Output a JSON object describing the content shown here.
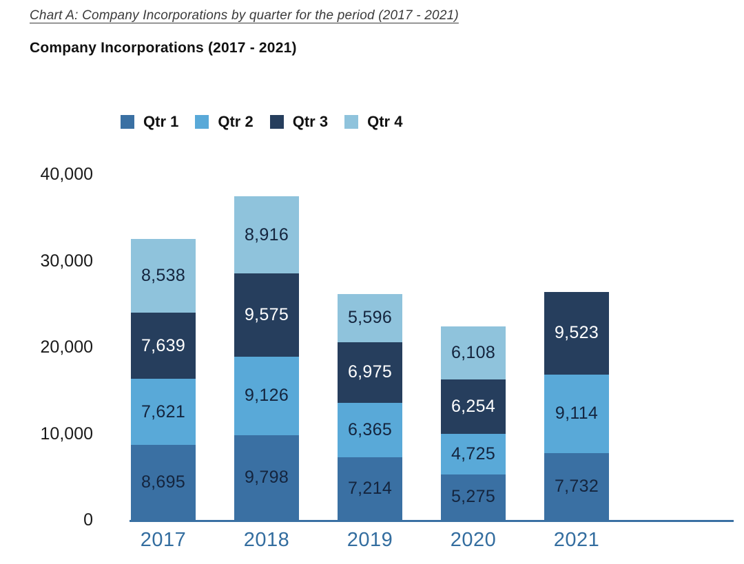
{
  "header": {
    "caption": "Chart A: Company Incorporations by quarter for the period (2017 - 2021)",
    "title": "Company Incorporations (2017 - 2021)"
  },
  "chart_data": {
    "type": "bar",
    "stacked": true,
    "title": "Company Incorporations (2017 - 2021)",
    "categories": [
      "2017",
      "2018",
      "2019",
      "2020",
      "2021"
    ],
    "series": [
      {
        "name": "Qtr 1",
        "color": "#3a70a3",
        "label_color": "#14243d",
        "values": [
          8695,
          9798,
          7214,
          5275,
          7732
        ]
      },
      {
        "name": "Qtr 2",
        "color": "#59a9d8",
        "label_color": "#14243d",
        "values": [
          7621,
          9126,
          6365,
          4725,
          9114
        ]
      },
      {
        "name": "Qtr 3",
        "color": "#263e5d",
        "label_color": "#ffffff",
        "values": [
          7639,
          9575,
          6975,
          6254,
          9523
        ]
      },
      {
        "name": "Qtr 4",
        "color": "#8fc3dc",
        "label_color": "#14243d",
        "values": [
          8538,
          8916,
          5596,
          6108,
          null
        ]
      }
    ],
    "totals": [
      32493,
      37415,
      26150,
      22362,
      26369
    ],
    "xlabel": "",
    "ylabel": "",
    "ylim": [
      0,
      40000
    ],
    "yticks": [
      0,
      10000,
      20000,
      30000,
      40000
    ],
    "ytick_labels": [
      "0",
      "10,000",
      "20,000",
      "30,000",
      "40,000"
    ],
    "grid": false,
    "legend_position": "top",
    "axis_color": "#3a70a3",
    "xtick_color": "#336d9f",
    "ytick_color": "#1a1a1a"
  }
}
